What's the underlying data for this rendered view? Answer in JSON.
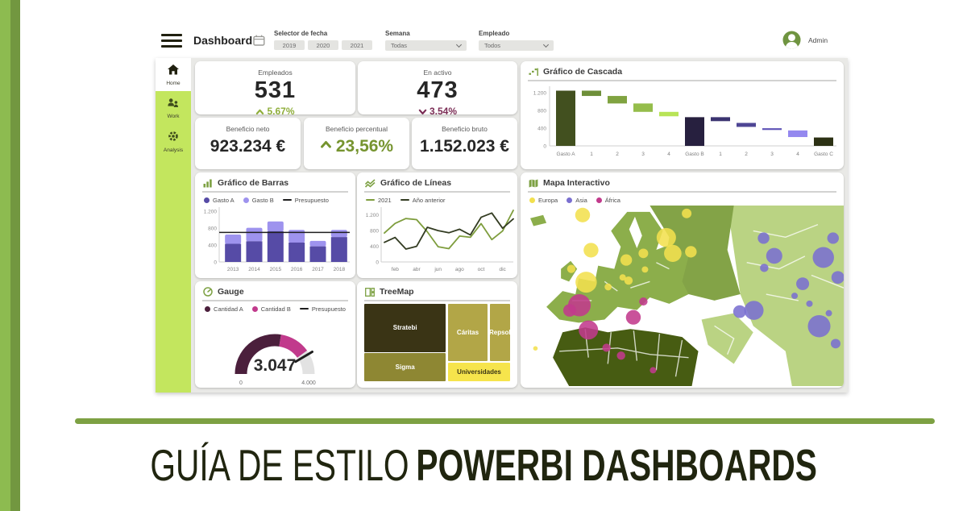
{
  "theme": {
    "accent_olive": "#7da143",
    "lime": "#c3e65e",
    "edge_green_outer": "#8dbb50",
    "edge_green_inner": "#729740",
    "dashboard_bg": "#e9e9e6",
    "positive_green": "#8fae3b",
    "negative_maroon": "#7b2d55"
  },
  "header": {
    "app_title": "Dashboard",
    "filters": {
      "date": {
        "label": "Selector de fecha",
        "years": [
          "2019",
          "2020",
          "2021"
        ]
      },
      "week": {
        "label": "Semana",
        "value": "Todas"
      },
      "employee": {
        "label": "Empleado",
        "value": "Todos"
      }
    },
    "user_name": "Admin"
  },
  "sidebar": {
    "items": [
      {
        "label": "Home",
        "active": true
      },
      {
        "label": "Work",
        "active": false
      },
      {
        "label": "Analysis",
        "active": false
      }
    ]
  },
  "kpis": [
    {
      "label": "Empleados",
      "value": "531",
      "delta": "5,67%",
      "direction": "up",
      "delta_color": "#8fae3b"
    },
    {
      "label": "En activo",
      "value": "473",
      "delta": "3,54%",
      "direction": "down",
      "delta_color": "#7b2d55"
    },
    {
      "label": "Beneficio neto",
      "value": "923.234 €"
    },
    {
      "label": "Beneficio percentual",
      "value": "23,56%",
      "direction": "up",
      "value_color": "#76942f"
    },
    {
      "label": "Beneficio bruto",
      "value": "1.152.023 €"
    }
  ],
  "chart_data": [
    {
      "id": "waterfall",
      "type": "waterfall",
      "title": "Gráfico de Cascada",
      "yticks": [
        {
          "label": "0",
          "value": 0
        },
        {
          "label": "400",
          "value": 400
        },
        {
          "label": "800",
          "value": 800
        },
        {
          "label": "1.200",
          "value": 1200
        }
      ],
      "ymax": 1350,
      "categories": [
        "Gasto A",
        "1",
        "2",
        "3",
        "4",
        "Gasto B",
        "1",
        "2",
        "3",
        "4",
        "Gasto C"
      ],
      "segments": [
        {
          "category": "Gasto A",
          "from": 0,
          "to": 1250,
          "color": "#42501f"
        },
        {
          "category": "1",
          "from": 1130,
          "to": 1250,
          "color": "#6e8f39"
        },
        {
          "category": "2",
          "from": 960,
          "to": 1130,
          "color": "#80a341"
        },
        {
          "category": "3",
          "from": 770,
          "to": 960,
          "color": "#95bd4b"
        },
        {
          "category": "4",
          "from": 670,
          "to": 770,
          "color": "#b8e457"
        },
        {
          "category": "Gasto B",
          "from": 0,
          "to": 650,
          "color": "#27203f"
        },
        {
          "category": "1",
          "from": 560,
          "to": 650,
          "color": "#3b3470"
        },
        {
          "category": "2",
          "from": 430,
          "to": 520,
          "color": "#4f4694"
        },
        {
          "category": "3",
          "from": 360,
          "to": 400,
          "color": "#6257b8"
        },
        {
          "category": "4",
          "from": 200,
          "to": 350,
          "color": "#9488ef"
        },
        {
          "category": "Gasto C",
          "from": 0,
          "to": 190,
          "color": "#2c3114"
        }
      ]
    },
    {
      "id": "bars",
      "type": "bar",
      "title": "Gráfico de Barras",
      "legend": [
        {
          "name": "Gasto A",
          "color": "#564ba6",
          "marker": "dot"
        },
        {
          "name": "Gasto B",
          "color": "#9e93ee",
          "marker": "dot"
        },
        {
          "name": "Presupuesto",
          "color": "#1e1e1e",
          "marker": "line"
        }
      ],
      "categories": [
        "2013",
        "2014",
        "2015",
        "2016",
        "2017",
        "2018"
      ],
      "series": [
        {
          "name": "Gasto A",
          "color": "#564ba6",
          "values": [
            430,
            490,
            730,
            460,
            370,
            590
          ]
        },
        {
          "name": "Gasto B",
          "color": "#9e93ee",
          "values": [
            220,
            320,
            230,
            300,
            130,
            170
          ]
        }
      ],
      "reference": {
        "name": "Presupuesto",
        "value": 700,
        "color": "#1e1e1e"
      },
      "yticks": [
        {
          "label": "0",
          "value": 0
        },
        {
          "label": "400",
          "value": 400
        },
        {
          "label": "800",
          "value": 800
        },
        {
          "label": "1.200",
          "value": 1200
        }
      ],
      "ymax": 1300
    },
    {
      "id": "lines",
      "type": "line",
      "title": "Gráfico de Líneas",
      "legend": [
        {
          "name": "2021",
          "color": "#7e9d3d",
          "marker": "line"
        },
        {
          "name": "Año anterior",
          "color": "#333c22",
          "marker": "line"
        }
      ],
      "xticks": [
        {
          "label": "feb",
          "index": 1
        },
        {
          "label": "abr",
          "index": 3
        },
        {
          "label": "jun",
          "index": 5
        },
        {
          "label": "ago",
          "index": 7
        },
        {
          "label": "oct",
          "index": 9
        },
        {
          "label": "dic",
          "index": 11
        }
      ],
      "series": [
        {
          "name": "2021",
          "color": "#7e9d3d",
          "values": [
            740,
            985,
            1110,
            1080,
            770,
            390,
            340,
            660,
            630,
            980,
            570,
            790,
            1320
          ]
        },
        {
          "name": "Año anterior",
          "color": "#333c22",
          "values": [
            500,
            625,
            330,
            400,
            885,
            800,
            745,
            835,
            690,
            1140,
            1250,
            860,
            1100
          ]
        }
      ],
      "yticks": [
        {
          "label": "0",
          "value": 0
        },
        {
          "label": "400",
          "value": 400
        },
        {
          "label": "800",
          "value": 800
        },
        {
          "label": "1.200",
          "value": 1200
        }
      ],
      "ymax": 1400
    },
    {
      "id": "map",
      "type": "map-bubble",
      "title": "Mapa Interactivo",
      "legend": [
        {
          "name": "Europa",
          "color": "#f2e04e",
          "marker": "dot"
        },
        {
          "name": "Asia",
          "color": "#7a6fd0",
          "marker": "dot"
        },
        {
          "name": "África",
          "color": "#c23a8c",
          "marker": "dot"
        }
      ],
      "region_colors": {
        "europe": "#8cae4b",
        "russia": "#83a347",
        "asia": "#bad383",
        "africa": "#475c12"
      },
      "bubbles": [
        {
          "region": "Europa",
          "x": 19.2,
          "y": 3.0,
          "r": 2.3
        },
        {
          "region": "Europa",
          "x": 21.8,
          "y": 14.1,
          "r": 2.3
        },
        {
          "region": "Europa",
          "x": 15.7,
          "y": 20.0,
          "r": 1.3
        },
        {
          "region": "Europa",
          "x": 32.7,
          "y": 17.2,
          "r": 1.8
        },
        {
          "region": "Europa",
          "x": 33.4,
          "y": 23.7,
          "r": 1.3
        },
        {
          "region": "Europa",
          "x": 45.1,
          "y": 10.1,
          "r": 3.0
        },
        {
          "region": "Europa",
          "x": 47.1,
          "y": 15.1,
          "r": 2.7
        },
        {
          "region": "Europa",
          "x": 38.0,
          "y": 15.1,
          "r": 1.5
        },
        {
          "region": "Europa",
          "x": 38.5,
          "y": 20.2,
          "r": 1.0
        },
        {
          "region": "Europa",
          "x": 51.4,
          "y": 2.5,
          "r": 1.5
        },
        {
          "region": "Europa",
          "x": 52.7,
          "y": 14.6,
          "r": 1.8
        },
        {
          "region": "Europa",
          "x": 20.3,
          "y": 24.2,
          "r": 3.3
        },
        {
          "region": "Europa",
          "x": 27.1,
          "y": 25.7,
          "r": 1.1
        },
        {
          "region": "Europa",
          "x": 31.6,
          "y": 22.7,
          "r": 1.0
        },
        {
          "region": "Europa",
          "x": 4.6,
          "y": 45.1,
          "r": 0.7
        },
        {
          "region": "Asia",
          "x": 75.2,
          "y": 10.3,
          "r": 1.8
        },
        {
          "region": "Asia",
          "x": 78.5,
          "y": 15.9,
          "r": 2.5
        },
        {
          "region": "Asia",
          "x": 75.4,
          "y": 19.7,
          "r": 1.3
        },
        {
          "region": "Asia",
          "x": 93.7,
          "y": 16.4,
          "r": 3.3
        },
        {
          "region": "Asia",
          "x": 96.7,
          "y": 10.3,
          "r": 1.8
        },
        {
          "region": "Asia",
          "x": 98.2,
          "y": 22.7,
          "r": 2.0
        },
        {
          "region": "Asia",
          "x": 72.2,
          "y": 33.1,
          "r": 3.0
        },
        {
          "region": "Asia",
          "x": 67.8,
          "y": 33.5,
          "r": 2.0
        },
        {
          "region": "Asia",
          "x": 87.3,
          "y": 24.7,
          "r": 2.0
        },
        {
          "region": "Asia",
          "x": 84.8,
          "y": 28.5,
          "r": 1.0
        },
        {
          "region": "Asia",
          "x": 89.4,
          "y": 31.0,
          "r": 1.0
        },
        {
          "region": "Asia",
          "x": 92.4,
          "y": 38.1,
          "r": 3.5
        },
        {
          "region": "Asia",
          "x": 97.5,
          "y": 43.6,
          "r": 1.5
        },
        {
          "region": "Asia",
          "x": 95.4,
          "y": 34.0,
          "r": 1.0
        },
        {
          "region": "África",
          "x": 18.2,
          "y": 31.5,
          "r": 3.5
        },
        {
          "region": "África",
          "x": 15.2,
          "y": 33.1,
          "r": 2.0
        },
        {
          "region": "África",
          "x": 21.0,
          "y": 39.3,
          "r": 3.0
        },
        {
          "region": "África",
          "x": 34.9,
          "y": 35.3,
          "r": 2.3
        },
        {
          "region": "África",
          "x": 26.6,
          "y": 44.9,
          "r": 1.3
        },
        {
          "region": "África",
          "x": 31.1,
          "y": 47.4,
          "r": 1.3
        },
        {
          "region": "África",
          "x": 41.0,
          "y": 52.0,
          "r": 1.0
        },
        {
          "region": "África",
          "x": 38.0,
          "y": 30.3,
          "r": 1.3
        }
      ]
    },
    {
      "id": "gauge",
      "type": "gauge",
      "title": "Gauge",
      "legend": [
        {
          "name": "Cantidad A",
          "color": "#4b1f3c",
          "marker": "dot"
        },
        {
          "name": "Cantidad B",
          "color": "#c13a8c",
          "marker": "dot"
        },
        {
          "name": "Presupuesto",
          "color": "#1e1e1e",
          "marker": "line"
        }
      ],
      "value": 3047,
      "value_label": "3.047",
      "min_label": "0",
      "max_label": "4.000",
      "max": 4000,
      "segments": [
        {
          "name": "Cantidad A",
          "to": 2200,
          "color": "#4b1f3c"
        },
        {
          "name": "Cantidad B",
          "to": 3200,
          "color": "#c13a8c"
        }
      ],
      "track_color": "#e2e2e2",
      "target": 3320
    },
    {
      "id": "treemap",
      "type": "treemap",
      "title": "TreeMap",
      "tiles": [
        {
          "label": "Stratebi",
          "color": "#3a3415",
          "text_color": "#ffffff",
          "x": 0,
          "y": 0,
          "w": 56,
          "h": 62
        },
        {
          "label": "Sigma",
          "color": "#8e8733",
          "text_color": "#ffffff",
          "x": 0,
          "y": 64,
          "w": 56,
          "h": 36
        },
        {
          "label": "Cáritas",
          "color": "#b2a647",
          "text_color": "#ffffff",
          "x": 57.5,
          "y": 0,
          "w": 27,
          "h": 74
        },
        {
          "label": "Repsol",
          "color": "#b2a647",
          "text_color": "#ffffff",
          "x": 86,
          "y": 0,
          "w": 14,
          "h": 74
        },
        {
          "label": "Universidades",
          "color": "#f6e44c",
          "text_color": "#3a3415",
          "x": 57.5,
          "y": 76,
          "w": 42.5,
          "h": 24
        }
      ]
    }
  ],
  "footer": {
    "title_light": "GUÍA DE ESTILO",
    "title_bold": "POWERBI DASHBOARDS"
  }
}
